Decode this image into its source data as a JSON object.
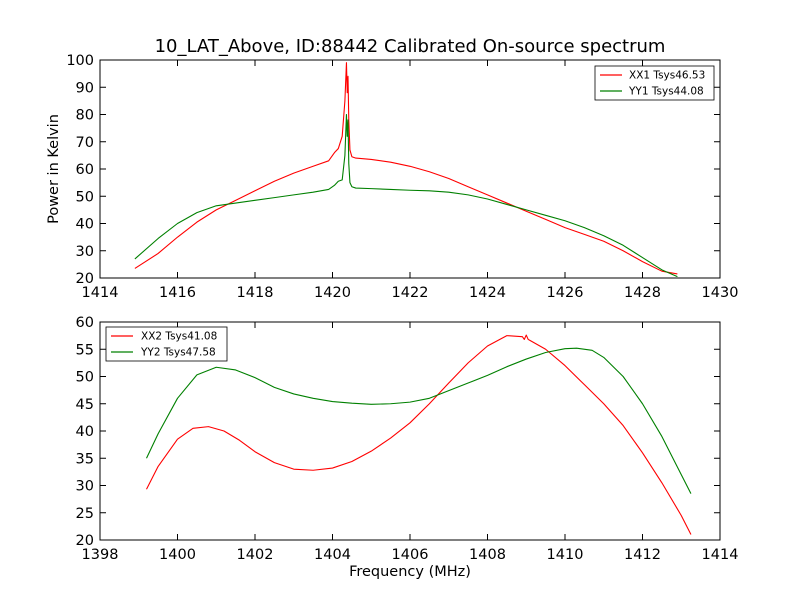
{
  "title": "10_LAT_Above, ID:88442 Calibrated On-source spectrum",
  "colors": {
    "red": "#ff0000",
    "green": "#008000"
  },
  "chart_data": [
    {
      "type": "line",
      "xlabel": "",
      "ylabel": "Power in Kelvin",
      "xlim": [
        1414,
        1430
      ],
      "ylim": [
        20,
        100
      ],
      "xticks": [
        1414,
        1416,
        1418,
        1420,
        1422,
        1424,
        1426,
        1428,
        1430
      ],
      "yticks": [
        20,
        30,
        40,
        50,
        60,
        70,
        80,
        90,
        100
      ],
      "grid": false,
      "legend_position": "top-right",
      "series": [
        {
          "name": "XX1 Tsys46.53",
          "color": "#ff0000",
          "x": [
            1414.9,
            1415.5,
            1416,
            1416.5,
            1417,
            1417.5,
            1418,
            1418.5,
            1419,
            1419.5,
            1419.9,
            1420.05,
            1420.15,
            1420.25,
            1420.32,
            1420.36,
            1420.38,
            1420.4,
            1420.42,
            1420.45,
            1420.5,
            1420.6,
            1421,
            1421.5,
            1422,
            1422.5,
            1423,
            1423.5,
            1424,
            1424.5,
            1425,
            1425.5,
            1426,
            1426.5,
            1427,
            1427.5,
            1428,
            1428.5,
            1428.9
          ],
          "y": [
            23.5,
            29,
            35,
            40.5,
            45,
            48.5,
            52,
            55.5,
            58.5,
            61,
            63,
            66,
            67.5,
            72,
            85,
            99,
            88,
            94,
            78,
            67,
            64.5,
            64,
            63.5,
            62.5,
            61,
            59,
            56.5,
            53.5,
            50.5,
            47.5,
            44.5,
            41.5,
            38.5,
            36,
            33.5,
            30,
            26,
            22.5,
            21.5
          ]
        },
        {
          "name": "YY1 Tsys44.08",
          "color": "#008000",
          "x": [
            1414.9,
            1415.5,
            1416,
            1416.5,
            1417,
            1417.5,
            1418,
            1418.5,
            1419,
            1419.5,
            1419.9,
            1420.05,
            1420.15,
            1420.25,
            1420.32,
            1420.36,
            1420.38,
            1420.4,
            1420.42,
            1420.45,
            1420.5,
            1420.6,
            1421,
            1421.5,
            1422,
            1422.5,
            1423,
            1423.5,
            1424,
            1424.5,
            1425,
            1425.5,
            1426,
            1426.5,
            1427,
            1427.5,
            1428,
            1428.5,
            1428.9
          ],
          "y": [
            27,
            34.5,
            40,
            44,
            46.5,
            47.5,
            48.5,
            49.5,
            50.5,
            51.5,
            52.5,
            54,
            55.5,
            56,
            65,
            80,
            72,
            78,
            62,
            55,
            53.5,
            53,
            52.8,
            52.5,
            52.2,
            52,
            51.5,
            50.5,
            49,
            47,
            45,
            43,
            41,
            38.5,
            35.5,
            32,
            27.5,
            23,
            20.5
          ]
        }
      ]
    },
    {
      "type": "line",
      "xlabel": "Frequency (MHz)",
      "ylabel": "",
      "xlim": [
        1398,
        1414
      ],
      "ylim": [
        20,
        60
      ],
      "xticks": [
        1398,
        1400,
        1402,
        1404,
        1406,
        1408,
        1410,
        1412,
        1414
      ],
      "yticks": [
        20,
        25,
        30,
        35,
        40,
        45,
        50,
        55,
        60
      ],
      "grid": false,
      "legend_position": "top-left",
      "series": [
        {
          "name": "XX2 Tsys41.08",
          "color": "#ff0000",
          "x": [
            1399.2,
            1399.5,
            1400,
            1400.4,
            1400.8,
            1401.2,
            1401.6,
            1402,
            1402.5,
            1403,
            1403.5,
            1404,
            1404.5,
            1405,
            1405.5,
            1406,
            1406.5,
            1407,
            1407.5,
            1408,
            1408.5,
            1408.9,
            1408.95,
            1409,
            1409.05,
            1409.1,
            1409.5,
            1410,
            1410.5,
            1411,
            1411.5,
            1412,
            1412.5,
            1413,
            1413.25
          ],
          "y": [
            29.3,
            33.5,
            38.5,
            40.5,
            40.8,
            40,
            38.3,
            36.2,
            34.2,
            33,
            32.8,
            33.2,
            34.4,
            36.3,
            38.7,
            41.5,
            45,
            48.8,
            52.5,
            55.6,
            57.5,
            57.3,
            56.8,
            57.6,
            56.8,
            56.6,
            55,
            52,
            48.5,
            45,
            41,
            36,
            30.5,
            24.5,
            21
          ]
        },
        {
          "name": "YY2 Tsys47.58",
          "color": "#008000",
          "x": [
            1399.2,
            1399.5,
            1400,
            1400.5,
            1401,
            1401.5,
            1402,
            1402.5,
            1403,
            1403.5,
            1404,
            1404.5,
            1405,
            1405.5,
            1406,
            1406.5,
            1407,
            1407.5,
            1408,
            1408.5,
            1409,
            1409.5,
            1410,
            1410.3,
            1410.7,
            1411,
            1411.5,
            1412,
            1412.5,
            1413,
            1413.25
          ],
          "y": [
            35,
            39.5,
            46,
            50.3,
            51.7,
            51.2,
            49.8,
            48,
            46.8,
            46,
            45.4,
            45.1,
            44.9,
            45,
            45.3,
            46,
            47.4,
            48.8,
            50.2,
            51.8,
            53.2,
            54.4,
            55.1,
            55.2,
            54.8,
            53.5,
            50,
            45,
            39,
            32,
            28.5
          ]
        }
      ]
    }
  ]
}
